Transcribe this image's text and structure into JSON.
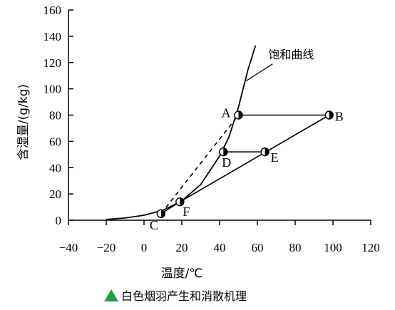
{
  "chart_data": {
    "type": "line",
    "title": "",
    "xlabel": "温度/℃",
    "ylabel": "含湿量/(g/kg)",
    "xlim": [
      -40,
      120
    ],
    "ylim": [
      0,
      160
    ],
    "x_ticks": [
      "−40",
      "−20",
      "0",
      "20",
      "40",
      "60",
      "80",
      "100",
      "120"
    ],
    "y_ticks": [
      "0",
      "20",
      "40",
      "60",
      "80",
      "100",
      "120",
      "140",
      "160"
    ],
    "grid": false,
    "curve_label": "饱和曲线",
    "saturation_curve": [
      {
        "x": -20,
        "y": 0.6
      },
      {
        "x": -10,
        "y": 1.7
      },
      {
        "x": 0,
        "y": 3.8
      },
      {
        "x": 10,
        "y": 7.6
      },
      {
        "x": 20,
        "y": 14.7
      },
      {
        "x": 30,
        "y": 27.2
      },
      {
        "x": 40,
        "y": 48.8
      },
      {
        "x": 45,
        "y": 63.5
      },
      {
        "x": 50,
        "y": 86.2
      },
      {
        "x": 55,
        "y": 114.5
      },
      {
        "x": 59,
        "y": 133
      }
    ],
    "points": [
      {
        "label": "A",
        "x": 50,
        "y": 80
      },
      {
        "label": "B",
        "x": 98,
        "y": 80
      },
      {
        "label": "C",
        "x": 9,
        "y": 5
      },
      {
        "label": "D",
        "x": 42,
        "y": 52
      },
      {
        "label": "E",
        "x": 64,
        "y": 52
      },
      {
        "label": "F",
        "x": 19,
        "y": 14
      }
    ],
    "segments": [
      {
        "from": "A",
        "to": "B",
        "style": "solid"
      },
      {
        "from": "D",
        "to": "E",
        "style": "solid"
      },
      {
        "from": "B",
        "to": "F",
        "style": "solid"
      },
      {
        "from": "F",
        "to": "C",
        "style": "solid"
      },
      {
        "from": "C",
        "to": "A",
        "style": "dashed"
      }
    ]
  },
  "caption": {
    "icon": "green-triangle-icon",
    "text": "白色烟羽产生和消散机理",
    "color": "#1f9e4a"
  }
}
